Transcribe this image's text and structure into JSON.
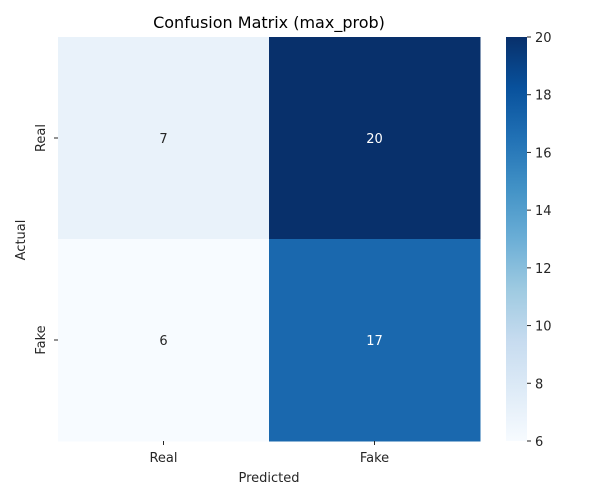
{
  "chart_data": {
    "type": "heatmap",
    "title": "Confusion Matrix (max_prob)",
    "xlabel": "Predicted",
    "ylabel": "Actual",
    "x_categories": [
      "Real",
      "Fake"
    ],
    "y_categories": [
      "Real",
      "Fake"
    ],
    "values": [
      [
        7,
        20
      ],
      [
        6,
        17
      ]
    ],
    "colormap": "Blues",
    "colorbar": {
      "range": [
        6,
        20
      ],
      "ticks": [
        6,
        8,
        10,
        12,
        14,
        16,
        18,
        20
      ]
    },
    "grid": false
  }
}
